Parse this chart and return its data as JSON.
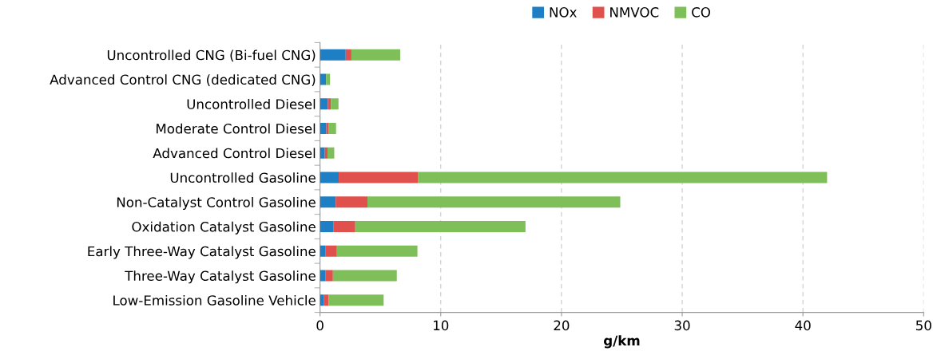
{
  "chart_data": {
    "type": "bar",
    "orientation": "horizontal",
    "stacked": true,
    "xlabel": "g/km",
    "categories": [
      "Uncontrolled CNG (Bi-fuel CNG)",
      "Advanced Control CNG (dedicated CNG)",
      "Uncontrolled Diesel",
      "Moderate Control Diesel",
      "Advanced Control Diesel",
      "Uncontrolled Gasoline",
      "Non-Catalyst Control Gasoline",
      "Oxidation Catalyst Gasoline",
      "Early Three-Way Catalyst Gasoline",
      "Three-Way Catalyst Gasoline",
      "Low-Emission Gasoline Vehicle"
    ],
    "series": [
      {
        "name": "NOx",
        "color": "#1f7fc4",
        "values": [
          2.13,
          0.5,
          0.65,
          0.53,
          0.4,
          1.55,
          1.3,
          1.13,
          0.47,
          0.47,
          0.3
        ]
      },
      {
        "name": "NMVOC",
        "color": "#e0504d",
        "values": [
          0.47,
          null,
          0.25,
          0.2,
          0.22,
          6.55,
          2.63,
          1.79,
          0.93,
          0.6,
          0.4
        ]
      },
      {
        "name": "CO",
        "color": "#7fbf5a",
        "values": [
          4.04,
          0.33,
          0.63,
          0.6,
          0.56,
          33.9,
          20.94,
          14.1,
          6.67,
          5.29,
          4.57
        ]
      }
    ],
    "xlim": [
      0,
      50
    ],
    "xticks": [
      0,
      10,
      20,
      30,
      40,
      50
    ],
    "grid": "x",
    "legend": "top"
  }
}
